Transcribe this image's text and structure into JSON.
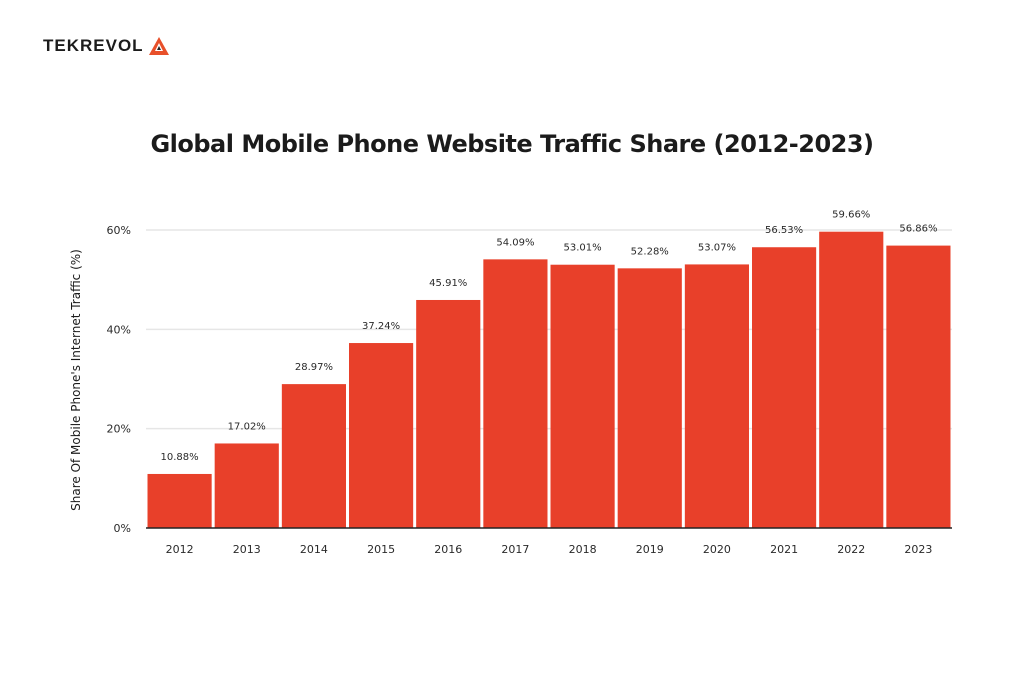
{
  "brand": {
    "name": "TEKREVOL",
    "logo_color": "#e8502a"
  },
  "chart_data": {
    "type": "bar",
    "title": "Global Mobile Phone Website Traffic Share (2012-2023)",
    "xlabel": "",
    "ylabel": "Share Of Mobile Phone's Internet Traffic (%)",
    "categories": [
      "2012",
      "2013",
      "2014",
      "2015",
      "2016",
      "2017",
      "2018",
      "2019",
      "2020",
      "2021",
      "2022",
      "2023"
    ],
    "values": [
      10.88,
      17.02,
      28.97,
      37.24,
      45.91,
      54.09,
      53.01,
      52.28,
      53.07,
      56.53,
      59.66,
      56.86
    ],
    "data_labels": [
      "10.88%",
      "17.02%",
      "28.97%",
      "37.24%",
      "45.91%",
      "54.09%",
      "53.01%",
      "52.28%",
      "53.07%",
      "56.53%",
      "59.66%",
      "56.86%"
    ],
    "yticks": [
      0,
      20,
      40,
      60
    ],
    "ytick_labels": [
      "0%",
      "20%",
      "40%",
      "60%"
    ],
    "ylim": [
      0,
      60
    ],
    "grid": true,
    "bar_color": "#e8402a"
  }
}
